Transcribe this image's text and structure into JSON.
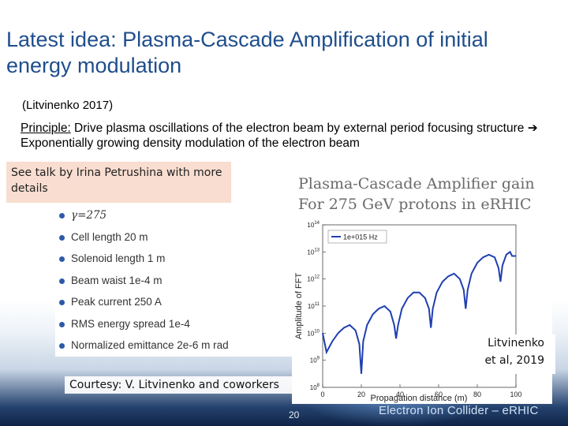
{
  "slide": {
    "title": "Latest idea: Plasma-Cascade Amplification of initial energy modulation",
    "citation": "(Litvinenko 2017)",
    "principle_label": "Principle:",
    "principle_text": " Drive plasma oscillations of the electron beam by external period focusing structure ",
    "principle_arrow": "➔",
    "principle_result": " Exponentially growing density modulation of the electron beam",
    "callout": "See talk by Irina Petrushina with more details",
    "params": [
      {
        "text": "γ=275"
      },
      {
        "text": "Cell length 20 m"
      },
      {
        "text": "Solenoid length 1 m"
      },
      {
        "text": "Beam waist 1e-4 m"
      },
      {
        "text": "Peak current 250 A"
      },
      {
        "text": "RMS energy spread 1e-4"
      },
      {
        "text": "Normalized emittance 2e-6 m rad"
      }
    ],
    "courtesy": "Courtesy: V. Litvinenko and coworkers",
    "credit_line1": "Litvinenko",
    "credit_line2": "et al, 2019",
    "page_number": "20",
    "footer_brand": "Electron Ion Collider – eRHIC",
    "accent_color": "#1f4e8c",
    "series_color": "#1f3fb0"
  },
  "chart_data": {
    "type": "line",
    "title_line1": "Plasma-Cascade Amplifier gain",
    "title_line2": "For 275 GeV protons in eRHIC",
    "xlabel": "Propagation distance (m)",
    "ylabel": "Amplitude of FFT",
    "xlim": [
      0,
      100
    ],
    "ylim_exp": [
      8,
      14
    ],
    "yscale": "log",
    "x_ticks": [
      "0",
      "20",
      "40",
      "60",
      "80",
      "100"
    ],
    "y_ticks": [
      "10^8",
      "10^9",
      "10^10",
      "10^11",
      "10^12",
      "10^13",
      "10^14"
    ],
    "legend": {
      "name": "1e+015 Hz",
      "position": "top-left"
    },
    "series": [
      {
        "name": "1e+015 Hz",
        "x": [
          0,
          2,
          5,
          8,
          11,
          14,
          17,
          19,
          20,
          21,
          23,
          26,
          29,
          32,
          35,
          37,
          38,
          39,
          41,
          44,
          47,
          50,
          53,
          55,
          56,
          57,
          59,
          62,
          65,
          68,
          71,
          73,
          74,
          75,
          77,
          80,
          83,
          86,
          89,
          91,
          92,
          93,
          95,
          97,
          98,
          100
        ],
        "y_exp": [
          10.0,
          9.3,
          9.7,
          10.0,
          10.2,
          10.3,
          10.1,
          9.6,
          8.5,
          9.7,
          10.3,
          10.7,
          10.9,
          11.0,
          10.8,
          10.3,
          9.8,
          10.3,
          10.9,
          11.3,
          11.5,
          11.5,
          11.3,
          10.9,
          10.2,
          10.9,
          11.5,
          11.9,
          12.1,
          12.2,
          12.0,
          11.6,
          10.9,
          11.6,
          12.2,
          12.6,
          12.8,
          12.9,
          12.8,
          12.4,
          11.9,
          12.5,
          12.9,
          13.0,
          12.85,
          12.85
        ]
      }
    ]
  }
}
